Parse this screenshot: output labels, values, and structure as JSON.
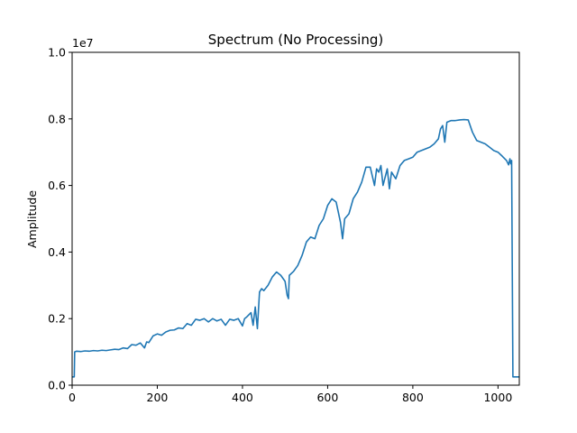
{
  "chart_data": {
    "type": "line",
    "title": "Spectrum (No Processing)",
    "xlabel": "",
    "ylabel": "Amplitude",
    "y_offset_label": "1e7",
    "xlim": [
      0,
      1050
    ],
    "ylim": [
      0,
      1.0
    ],
    "xticks": [
      0,
      200,
      400,
      600,
      800,
      1000
    ],
    "xtick_labels": [
      "0",
      "200",
      "400",
      "600",
      "800",
      "1000"
    ],
    "yticks": [
      0,
      0.2,
      0.4,
      0.6,
      0.8,
      1.0
    ],
    "ytick_labels": [
      "0.0",
      "0.2",
      "0.4",
      "0.6",
      "0.8",
      "1.0"
    ],
    "grid": false,
    "legend": false,
    "series": [
      {
        "color": "#1f77b4",
        "x": [
          0,
          5,
          6,
          10,
          20,
          30,
          40,
          50,
          60,
          70,
          80,
          90,
          100,
          110,
          120,
          130,
          140,
          150,
          160,
          170,
          175,
          180,
          190,
          200,
          210,
          220,
          230,
          240,
          250,
          260,
          270,
          280,
          290,
          300,
          310,
          320,
          330,
          340,
          350,
          360,
          370,
          380,
          390,
          400,
          405,
          410,
          420,
          425,
          430,
          435,
          440,
          445,
          450,
          460,
          470,
          480,
          490,
          500,
          505,
          508,
          510,
          520,
          530,
          540,
          550,
          560,
          570,
          580,
          590,
          600,
          610,
          620,
          630,
          635,
          640,
          650,
          660,
          670,
          680,
          690,
          700,
          710,
          715,
          720,
          725,
          730,
          740,
          745,
          750,
          760,
          770,
          780,
          790,
          800,
          810,
          820,
          830,
          840,
          850,
          860,
          865,
          870,
          875,
          880,
          890,
          900,
          910,
          920,
          930,
          940,
          950,
          960,
          970,
          980,
          990,
          1000,
          1010,
          1020,
          1025,
          1028,
          1030,
          1032,
          1035,
          1040,
          1050
        ],
        "y": [
          0.025,
          0.025,
          0.1,
          0.102,
          0.101,
          0.103,
          0.102,
          0.104,
          0.103,
          0.105,
          0.104,
          0.106,
          0.108,
          0.107,
          0.112,
          0.11,
          0.122,
          0.12,
          0.127,
          0.112,
          0.13,
          0.128,
          0.148,
          0.154,
          0.15,
          0.16,
          0.165,
          0.166,
          0.172,
          0.17,
          0.185,
          0.18,
          0.198,
          0.195,
          0.2,
          0.19,
          0.2,
          0.193,
          0.198,
          0.18,
          0.198,
          0.195,
          0.2,
          0.178,
          0.2,
          0.205,
          0.218,
          0.18,
          0.235,
          0.17,
          0.28,
          0.29,
          0.284,
          0.3,
          0.325,
          0.34,
          0.33,
          0.312,
          0.27,
          0.26,
          0.33,
          0.342,
          0.36,
          0.39,
          0.43,
          0.445,
          0.44,
          0.48,
          0.5,
          0.54,
          0.56,
          0.55,
          0.49,
          0.44,
          0.5,
          0.515,
          0.56,
          0.58,
          0.61,
          0.655,
          0.655,
          0.6,
          0.65,
          0.64,
          0.66,
          0.6,
          0.65,
          0.59,
          0.64,
          0.62,
          0.66,
          0.675,
          0.68,
          0.685,
          0.7,
          0.705,
          0.71,
          0.715,
          0.725,
          0.74,
          0.77,
          0.78,
          0.73,
          0.79,
          0.795,
          0.795,
          0.797,
          0.798,
          0.797,
          0.76,
          0.735,
          0.73,
          0.725,
          0.715,
          0.705,
          0.7,
          0.688,
          0.675,
          0.662,
          0.68,
          0.665,
          0.675,
          0.025,
          0.025,
          0.025
        ]
      }
    ]
  }
}
